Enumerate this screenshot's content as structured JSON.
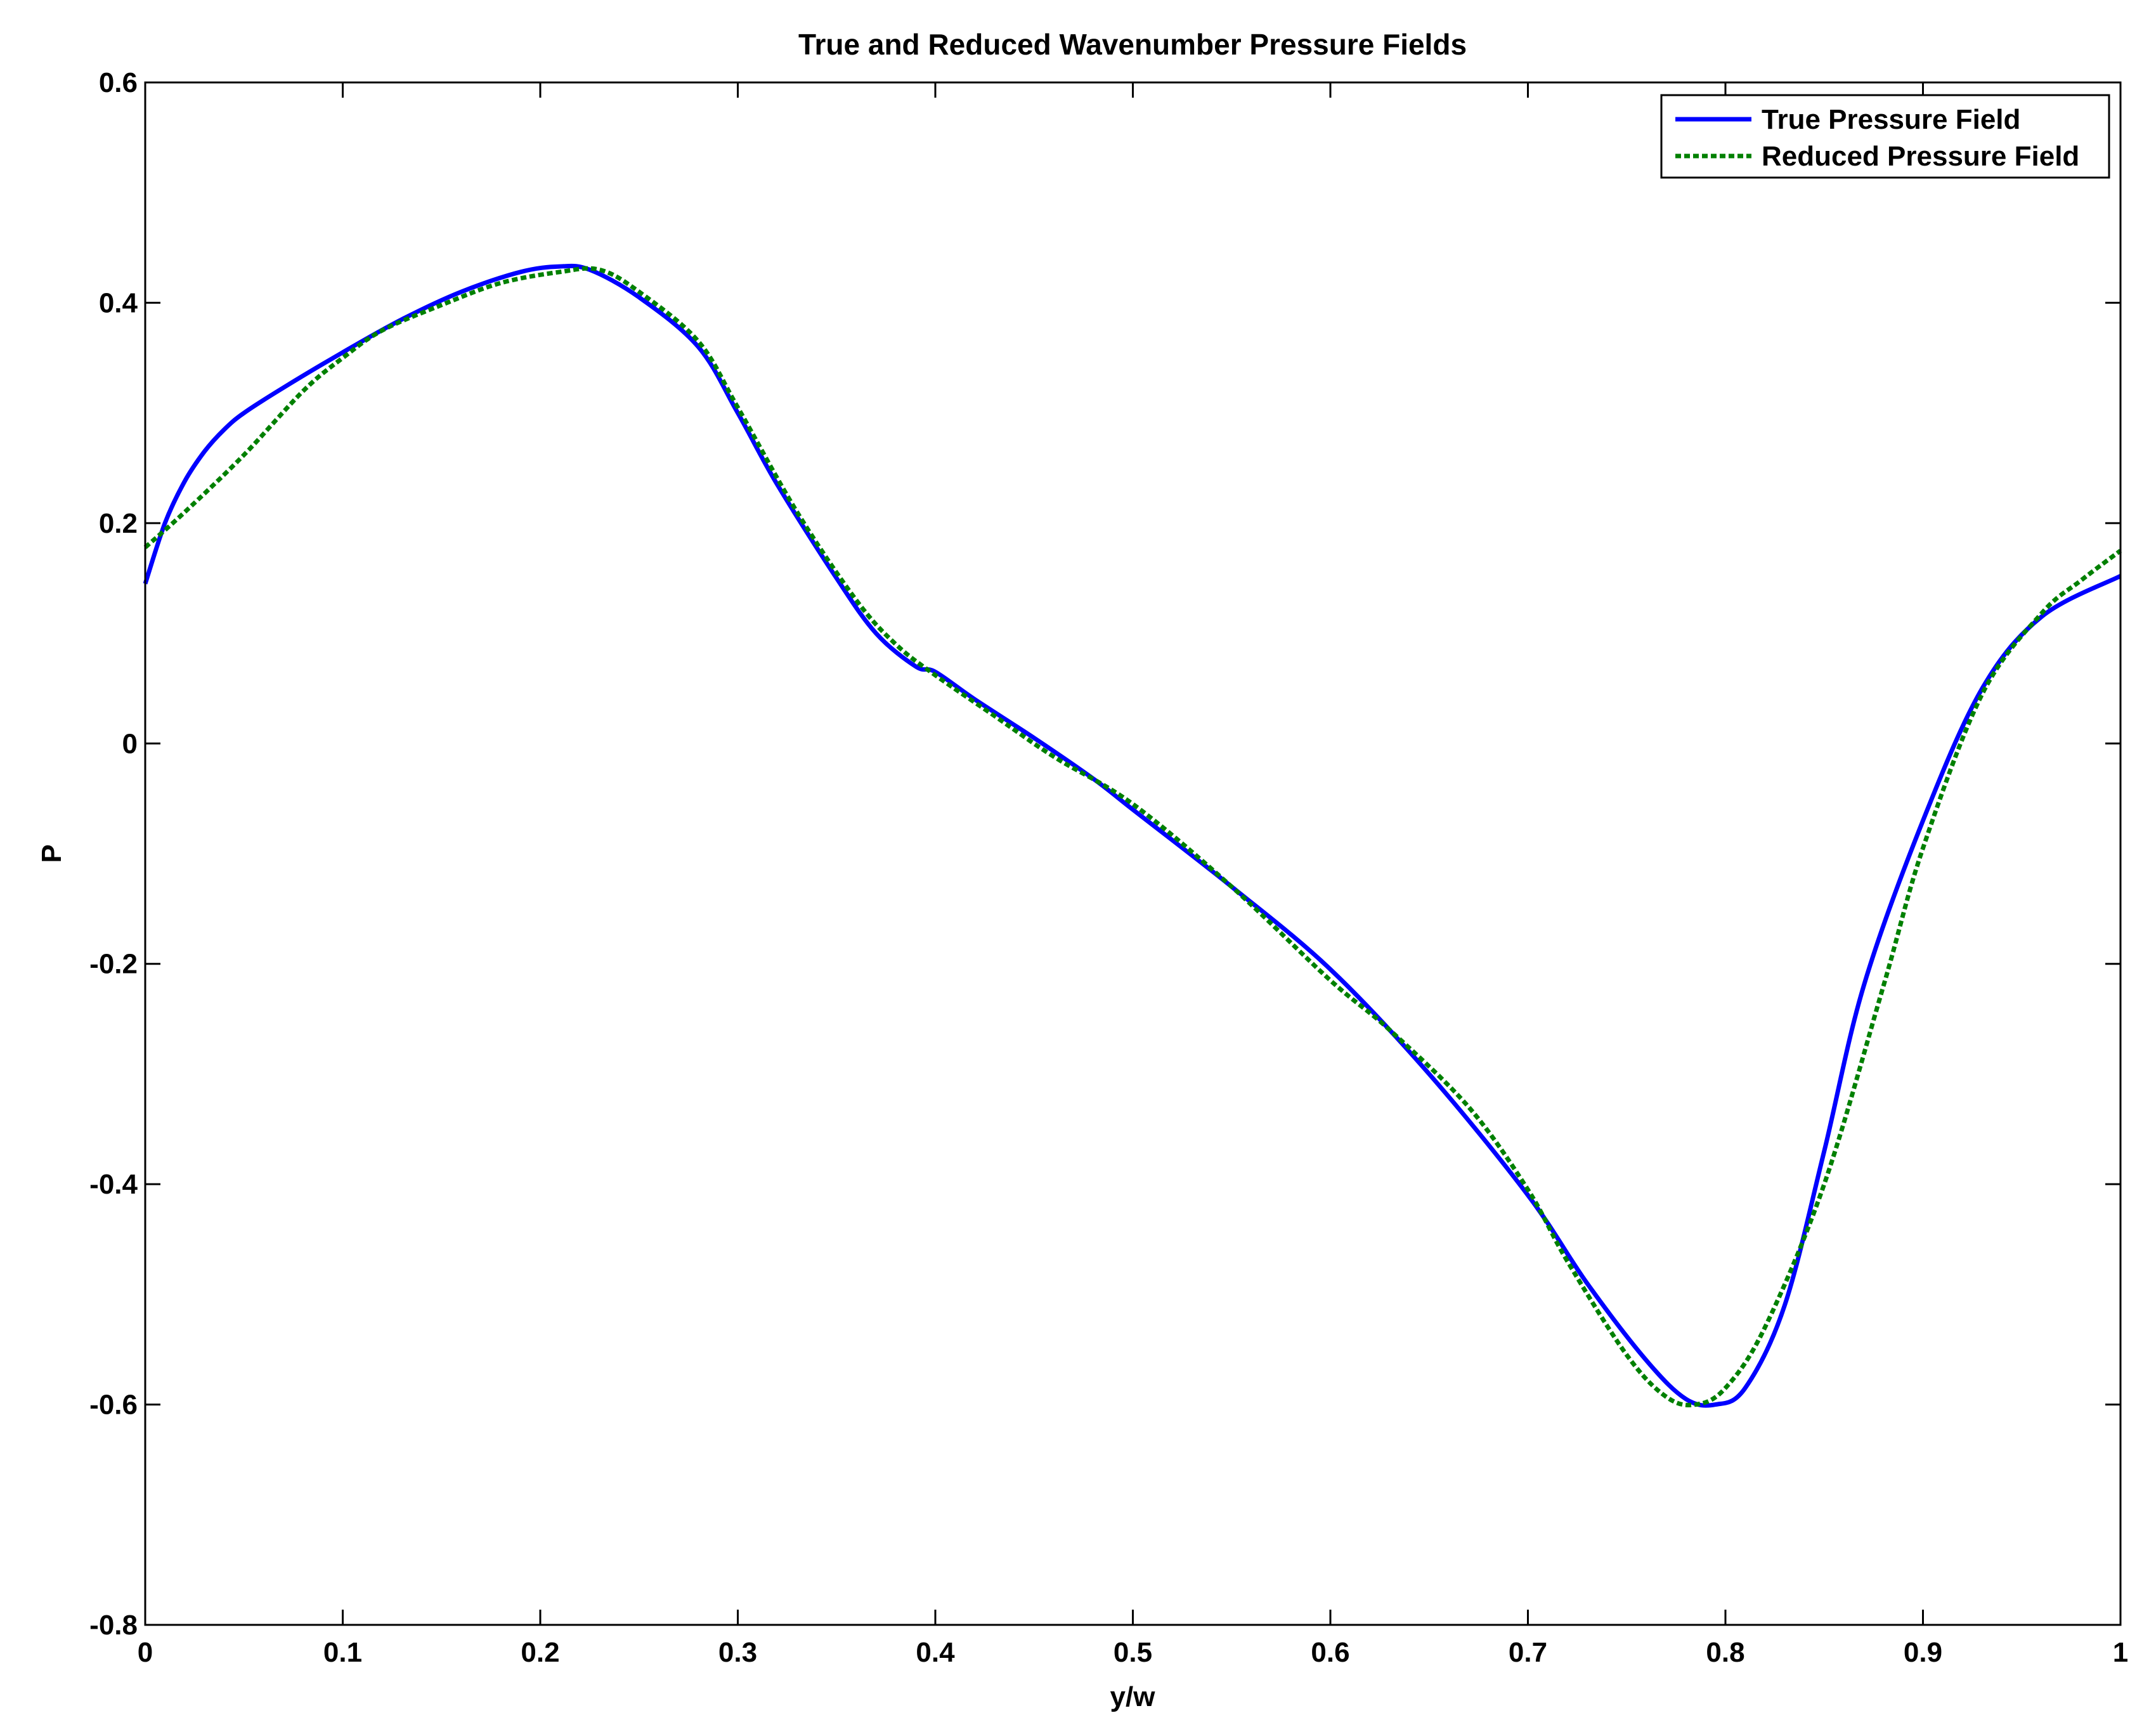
{
  "chart_data": {
    "type": "line",
    "title": "True and Reduced Wavenumber Pressure Fields",
    "xlabel": "y/w",
    "ylabel": "P",
    "xlim": [
      0,
      1
    ],
    "ylim": [
      -0.8,
      0.6
    ],
    "xticks": [
      0,
      0.1,
      0.2,
      0.3,
      0.4,
      0.5,
      0.6,
      0.7,
      0.8,
      0.9,
      1
    ],
    "xtick_labels": [
      "0",
      "0.1",
      "0.2",
      "0.3",
      "0.4",
      "0.5",
      "0.6",
      "0.7",
      "0.8",
      "0.9",
      "1"
    ],
    "yticks": [
      0.6,
      0.4,
      0.2,
      0,
      -0.2,
      -0.4,
      -0.6,
      -0.8
    ],
    "ytick_labels": [
      "0.6",
      "0.4",
      "0.2",
      "0",
      "-0.2",
      "-0.4",
      "-0.6",
      "-0.8"
    ],
    "grid": false,
    "legend_position": "top-right",
    "series": [
      {
        "name": "True Pressure Field",
        "color": "#0000ff",
        "style": "solid",
        "x": [
          0,
          0.01,
          0.02,
          0.03,
          0.04,
          0.05,
          0.07,
          0.1,
          0.13,
          0.16,
          0.19,
          0.21,
          0.225,
          0.25,
          0.28,
          0.3,
          0.32,
          0.35,
          0.37,
          0.39,
          0.4,
          0.42,
          0.45,
          0.48,
          0.5,
          0.55,
          0.6,
          0.65,
          0.7,
          0.73,
          0.76,
          0.78,
          0.795,
          0.81,
          0.83,
          0.85,
          0.87,
          0.9,
          0.93,
          0.96,
          1.0
        ],
        "y": [
          0.145,
          0.2,
          0.238,
          0.265,
          0.285,
          0.3,
          0.323,
          0.355,
          0.385,
          0.41,
          0.428,
          0.433,
          0.43,
          0.405,
          0.36,
          0.3,
          0.235,
          0.15,
          0.1,
          0.07,
          0.065,
          0.04,
          0.005,
          -0.032,
          -0.06,
          -0.13,
          -0.205,
          -0.3,
          -0.41,
          -0.49,
          -0.56,
          -0.595,
          -0.6,
          -0.585,
          -0.51,
          -0.37,
          -0.22,
          -0.07,
          0.05,
          0.115,
          0.152
        ]
      },
      {
        "name": "Reduced Pressure Field",
        "color": "#008000",
        "style": "dotted",
        "x": [
          0,
          0.02,
          0.05,
          0.08,
          0.1,
          0.12,
          0.15,
          0.18,
          0.21,
          0.23,
          0.25,
          0.28,
          0.3,
          0.33,
          0.36,
          0.38,
          0.4,
          0.43,
          0.46,
          0.5,
          0.55,
          0.6,
          0.63,
          0.67,
          0.7,
          0.72,
          0.75,
          0.77,
          0.785,
          0.8,
          0.82,
          0.85,
          0.88,
          0.9,
          0.93,
          0.96,
          0.98,
          1.0
        ],
        "y": [
          0.178,
          0.21,
          0.262,
          0.32,
          0.35,
          0.375,
          0.398,
          0.418,
          0.428,
          0.43,
          0.41,
          0.365,
          0.305,
          0.21,
          0.13,
          0.09,
          0.062,
          0.025,
          -0.012,
          -0.055,
          -0.13,
          -0.215,
          -0.26,
          -0.33,
          -0.405,
          -0.47,
          -0.555,
          -0.593,
          -0.6,
          -0.585,
          -0.53,
          -0.4,
          -0.22,
          -0.095,
          0.045,
          0.118,
          0.148,
          0.175
        ]
      }
    ]
  }
}
